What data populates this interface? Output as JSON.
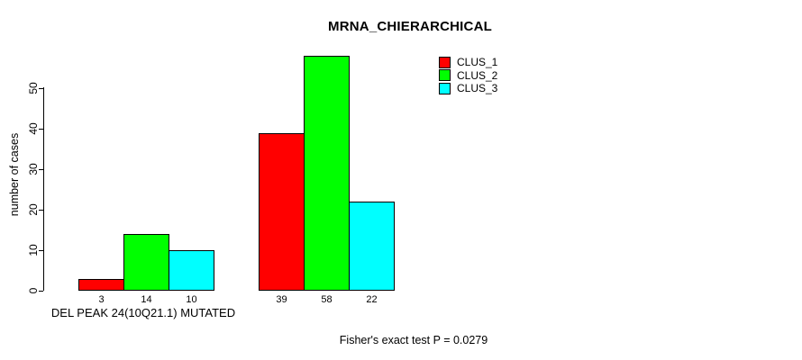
{
  "title": "MRNA_CHIERARCHICAL",
  "chart_data": {
    "type": "bar",
    "title": "MRNA_CHIERARCHICAL",
    "ylabel": "number of cases",
    "xlabel": "DEL PEAK 24(10Q21.1) MUTATED",
    "categories": [
      "DEL PEAK 24(10Q21.1) MUTATED",
      ""
    ],
    "series": [
      {
        "name": "CLUS_1",
        "color": "#ff0000",
        "values": [
          3,
          39
        ]
      },
      {
        "name": "CLUS_2",
        "color": "#00ff00",
        "values": [
          14,
          58
        ]
      },
      {
        "name": "CLUS_3",
        "color": "#00ffff",
        "values": [
          10,
          22
        ]
      }
    ],
    "bar_value_labels": [
      [
        3,
        14,
        10
      ],
      [
        39,
        58,
        22
      ]
    ],
    "yticks": [
      0,
      10,
      20,
      30,
      40,
      50
    ],
    "ylim": [
      0,
      58
    ],
    "grid": false,
    "bar_edge_color": "#000000",
    "legend_position": "top-right",
    "annotation": "Fisher's exact test P = 0.0279"
  },
  "legend": {
    "items": [
      {
        "label": "CLUS_1",
        "color": "#ff0000"
      },
      {
        "label": "CLUS_2",
        "color": "#00ff00"
      },
      {
        "label": "CLUS_3",
        "color": "#00ffff"
      }
    ]
  },
  "footer": {
    "note": "Fisher's exact test P = 0.0279"
  }
}
